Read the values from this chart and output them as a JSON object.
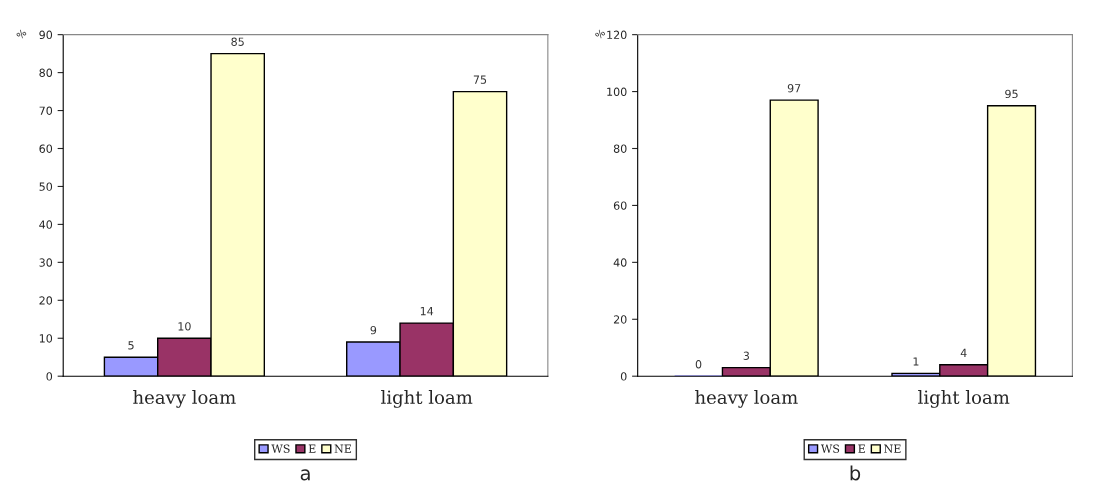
{
  "chart_data": [
    {
      "type": "bar",
      "ylabel": "%",
      "categories": [
        "heavy loam",
        "light loam"
      ],
      "series": [
        {
          "name": "WS",
          "color": "#9999ff",
          "values": [
            5,
            9
          ]
        },
        {
          "name": "E",
          "color": "#993366",
          "values": [
            10,
            14
          ]
        },
        {
          "name": "NE",
          "color": "#ffffcc",
          "values": [
            85,
            75
          ]
        }
      ],
      "ylim": [
        0,
        90
      ],
      "yticks": [
        0,
        10,
        20,
        30,
        40,
        50,
        60,
        70,
        80,
        90
      ],
      "data_labels": true,
      "legend": "bottom",
      "grid": false,
      "annotations": [
        "a"
      ]
    },
    {
      "type": "bar",
      "ylabel": "%",
      "categories": [
        "heavy loam",
        "light loam"
      ],
      "series": [
        {
          "name": "WS",
          "color": "#9999ff",
          "values": [
            0,
            1
          ]
        },
        {
          "name": "E",
          "color": "#993366",
          "values": [
            3,
            4
          ]
        },
        {
          "name": "NE",
          "color": "#ffffcc",
          "values": [
            97,
            95
          ]
        }
      ],
      "ylim": [
        0,
        120
      ],
      "yticks": [
        0,
        20,
        40,
        60,
        80,
        100,
        120
      ],
      "data_labels": true,
      "legend": "bottom",
      "grid": false,
      "annotations": [
        "b"
      ]
    }
  ]
}
